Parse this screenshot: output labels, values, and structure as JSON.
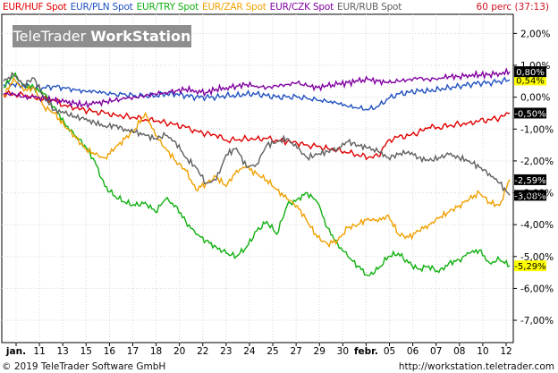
{
  "header": {
    "timeframe": "60 perc (37:13)"
  },
  "watermark": {
    "brand": "TeleTrader",
    "product": "WorkStation"
  },
  "footer": {
    "copyright": "© 2019 TeleTrader Software GmbH",
    "url": "http://workstation.teletrader.com"
  },
  "chart_data": {
    "type": "line",
    "ylim": [
      -7.7,
      2.6
    ],
    "y_ticks": [
      "2,00%",
      "1,00%",
      "0,00%",
      "-1,00%",
      "-2,00%",
      "-3,00%",
      "-4,00%",
      "-5,00%",
      "-6,00%",
      "-7,00%"
    ],
    "y_tick_values": [
      2,
      1,
      0,
      -1,
      -2,
      -3,
      -4,
      -5,
      -6,
      -7
    ],
    "grid": true,
    "x_tick_labels": [
      "jan.",
      "11",
      "13",
      "15",
      "16",
      "17",
      "18",
      "20",
      "22",
      "23",
      "24",
      "25",
      "27",
      "29",
      "30",
      "febr.",
      "05",
      "06",
      "07",
      "08",
      "10",
      "12"
    ],
    "series": [
      {
        "name": "EUR/HUF Spot",
        "color": "#e00000",
        "last_label": "-0,50%",
        "label_bg": "#000000",
        "label_fg": "#ffffff",
        "x": [
          0,
          2,
          4,
          6,
          8,
          10,
          12,
          14,
          16,
          18,
          20,
          22,
          24,
          26,
          28,
          30,
          32,
          34,
          36,
          38,
          40,
          42,
          44,
          46,
          48,
          50,
          52,
          54,
          56,
          58,
          60,
          62,
          64,
          66,
          68,
          70,
          72,
          74,
          76,
          78,
          80,
          82,
          84,
          86,
          88,
          90,
          92,
          94,
          96,
          98,
          100
        ],
        "y": [
          0.1,
          0.1,
          0.05,
          0.0,
          -0.05,
          -0.1,
          -0.25,
          -0.35,
          -0.4,
          -0.45,
          -0.5,
          -0.55,
          -0.6,
          -0.65,
          -0.7,
          -0.75,
          -0.8,
          -0.85,
          -0.95,
          -1.05,
          -1.15,
          -1.2,
          -1.35,
          -1.35,
          -1.3,
          -1.3,
          -1.3,
          -1.35,
          -1.4,
          -1.45,
          -1.5,
          -1.55,
          -1.6,
          -1.65,
          -1.75,
          -1.8,
          -1.9,
          -1.85,
          -1.35,
          -1.25,
          -1.2,
          -1.1,
          -0.95,
          -0.95,
          -0.9,
          -0.85,
          -0.8,
          -0.75,
          -0.7,
          -0.65,
          -0.5
        ]
      },
      {
        "name": "EUR/PLN Spot",
        "color": "#2050c0",
        "last_label": "0,54%",
        "label_bg": "#ffff00",
        "label_fg": "#000000",
        "x": [
          0,
          2,
          4,
          6,
          8,
          10,
          12,
          14,
          16,
          18,
          20,
          22,
          24,
          26,
          28,
          30,
          32,
          34,
          36,
          38,
          40,
          42,
          44,
          46,
          48,
          50,
          52,
          54,
          56,
          58,
          60,
          62,
          64,
          66,
          68,
          70,
          72,
          74,
          76,
          78,
          80,
          82,
          84,
          86,
          88,
          90,
          92,
          94,
          96,
          98,
          100
        ],
        "y": [
          0.4,
          0.4,
          0.35,
          0.3,
          0.3,
          0.35,
          0.3,
          0.25,
          0.2,
          0.2,
          0.15,
          0.1,
          0.1,
          0.05,
          0.05,
          0.05,
          0.1,
          0.1,
          0.05,
          0.0,
          0.0,
          0.0,
          0.05,
          0.05,
          0.1,
          0.1,
          0.05,
          0.0,
          0.0,
          0.0,
          -0.05,
          -0.1,
          -0.15,
          -0.2,
          -0.3,
          -0.35,
          -0.4,
          -0.3,
          -0.05,
          0.1,
          0.15,
          0.2,
          0.2,
          0.25,
          0.3,
          0.35,
          0.4,
          0.45,
          0.45,
          0.5,
          0.54
        ]
      },
      {
        "name": "EUR/TRY Spot",
        "color": "#10b010",
        "last_label": "-5,29%",
        "label_bg": "#ffff00",
        "label_fg": "#000000",
        "x": [
          0,
          2,
          4,
          6,
          8,
          10,
          12,
          14,
          16,
          18,
          20,
          22,
          24,
          26,
          28,
          30,
          32,
          34,
          36,
          38,
          40,
          42,
          44,
          46,
          48,
          50,
          52,
          54,
          56,
          58,
          60,
          62,
          64,
          66,
          68,
          70,
          72,
          74,
          76,
          78,
          80,
          82,
          84,
          86,
          88,
          90,
          92,
          94,
          96,
          98,
          100
        ],
        "y": [
          0.3,
          0.7,
          0.4,
          0.3,
          0.1,
          -0.3,
          -0.8,
          -1.2,
          -1.5,
          -2.0,
          -2.8,
          -3.1,
          -3.3,
          -3.4,
          -3.3,
          -3.6,
          -3.2,
          -3.4,
          -3.9,
          -4.3,
          -4.5,
          -4.7,
          -4.9,
          -5.0,
          -4.7,
          -4.2,
          -3.9,
          -4.3,
          -3.4,
          -3.2,
          -3.0,
          -3.3,
          -4.1,
          -4.6,
          -5.0,
          -5.3,
          -5.6,
          -5.4,
          -5.0,
          -4.9,
          -5.2,
          -5.4,
          -5.3,
          -5.5,
          -5.2,
          -5.1,
          -4.9,
          -4.8,
          -5.2,
          -5.1,
          -5.29
        ]
      },
      {
        "name": "EUR/ZAR Spot",
        "color": "#f0a000",
        "last_label": "-2,59%",
        "label_bg": "#000000",
        "label_fg": "#ffffff",
        "x": [
          0,
          2,
          4,
          6,
          8,
          10,
          12,
          14,
          16,
          18,
          20,
          22,
          24,
          26,
          28,
          30,
          32,
          34,
          36,
          38,
          40,
          42,
          44,
          46,
          48,
          50,
          52,
          54,
          56,
          58,
          60,
          62,
          64,
          66,
          68,
          70,
          72,
          74,
          76,
          78,
          80,
          82,
          84,
          86,
          88,
          90,
          92,
          94,
          96,
          98,
          100
        ],
        "y": [
          0.0,
          0.6,
          0.2,
          0.3,
          -0.3,
          -0.5,
          -0.9,
          -1.2,
          -1.6,
          -1.8,
          -1.9,
          -1.6,
          -1.3,
          -1.0,
          -0.5,
          -1.2,
          -1.6,
          -2.0,
          -2.3,
          -2.9,
          -2.7,
          -2.5,
          -2.8,
          -2.3,
          -2.2,
          -2.4,
          -2.6,
          -2.9,
          -3.2,
          -3.4,
          -3.9,
          -4.4,
          -4.6,
          -4.5,
          -4.1,
          -4.0,
          -3.8,
          -3.9,
          -3.7,
          -4.3,
          -4.4,
          -4.2,
          -4.0,
          -3.8,
          -3.6,
          -3.4,
          -3.2,
          -3.0,
          -3.3,
          -3.4,
          -2.59
        ]
      },
      {
        "name": "EUR/CZK Spot",
        "color": "#8000a0",
        "last_label": "0,80%",
        "label_bg": "#000000",
        "label_fg": "#ffffff",
        "x": [
          0,
          2,
          4,
          6,
          8,
          10,
          12,
          14,
          16,
          18,
          20,
          22,
          24,
          26,
          28,
          30,
          32,
          34,
          36,
          38,
          40,
          42,
          44,
          46,
          48,
          50,
          52,
          54,
          56,
          58,
          60,
          62,
          64,
          66,
          68,
          70,
          72,
          74,
          76,
          78,
          80,
          82,
          84,
          86,
          88,
          90,
          92,
          94,
          96,
          98,
          100
        ],
        "y": [
          0.1,
          0.1,
          0.0,
          0.0,
          -0.05,
          -0.1,
          -0.15,
          -0.2,
          -0.25,
          -0.2,
          -0.15,
          -0.1,
          -0.05,
          0.0,
          0.05,
          0.1,
          0.15,
          0.2,
          0.25,
          0.2,
          0.15,
          0.25,
          0.3,
          0.35,
          0.4,
          0.35,
          0.3,
          0.35,
          0.4,
          0.45,
          0.35,
          0.3,
          0.35,
          0.4,
          0.45,
          0.5,
          0.55,
          0.5,
          0.45,
          0.5,
          0.55,
          0.6,
          0.55,
          0.6,
          0.65,
          0.65,
          0.7,
          0.7,
          0.72,
          0.75,
          0.8
        ]
      },
      {
        "name": "EUR/RUB Spot",
        "color": "#606060",
        "last_label": "-3,08%",
        "label_bg": "#000000",
        "label_fg": "#ffffff",
        "x": [
          0,
          2,
          4,
          6,
          8,
          10,
          12,
          14,
          16,
          18,
          20,
          22,
          24,
          26,
          28,
          30,
          32,
          34,
          36,
          38,
          40,
          42,
          44,
          46,
          48,
          50,
          52,
          54,
          56,
          58,
          60,
          62,
          64,
          66,
          68,
          70,
          72,
          74,
          76,
          78,
          80,
          82,
          84,
          86,
          88,
          90,
          92,
          94,
          96,
          98,
          100
        ],
        "y": [
          0.5,
          0.7,
          0.4,
          0.6,
          0.0,
          -0.4,
          -0.5,
          -0.6,
          -0.7,
          -0.8,
          -0.9,
          -0.9,
          -1.0,
          -1.1,
          -1.2,
          -1.3,
          -1.2,
          -1.4,
          -1.9,
          -2.2,
          -2.7,
          -2.6,
          -1.8,
          -1.6,
          -2.2,
          -2.1,
          -1.5,
          -1.4,
          -1.3,
          -1.6,
          -1.9,
          -1.8,
          -1.7,
          -1.6,
          -1.4,
          -1.5,
          -1.6,
          -1.7,
          -1.9,
          -1.8,
          -1.7,
          -1.9,
          -2.0,
          -1.9,
          -1.8,
          -1.9,
          -2.0,
          -2.2,
          -2.4,
          -2.7,
          -3.08
        ]
      }
    ]
  }
}
